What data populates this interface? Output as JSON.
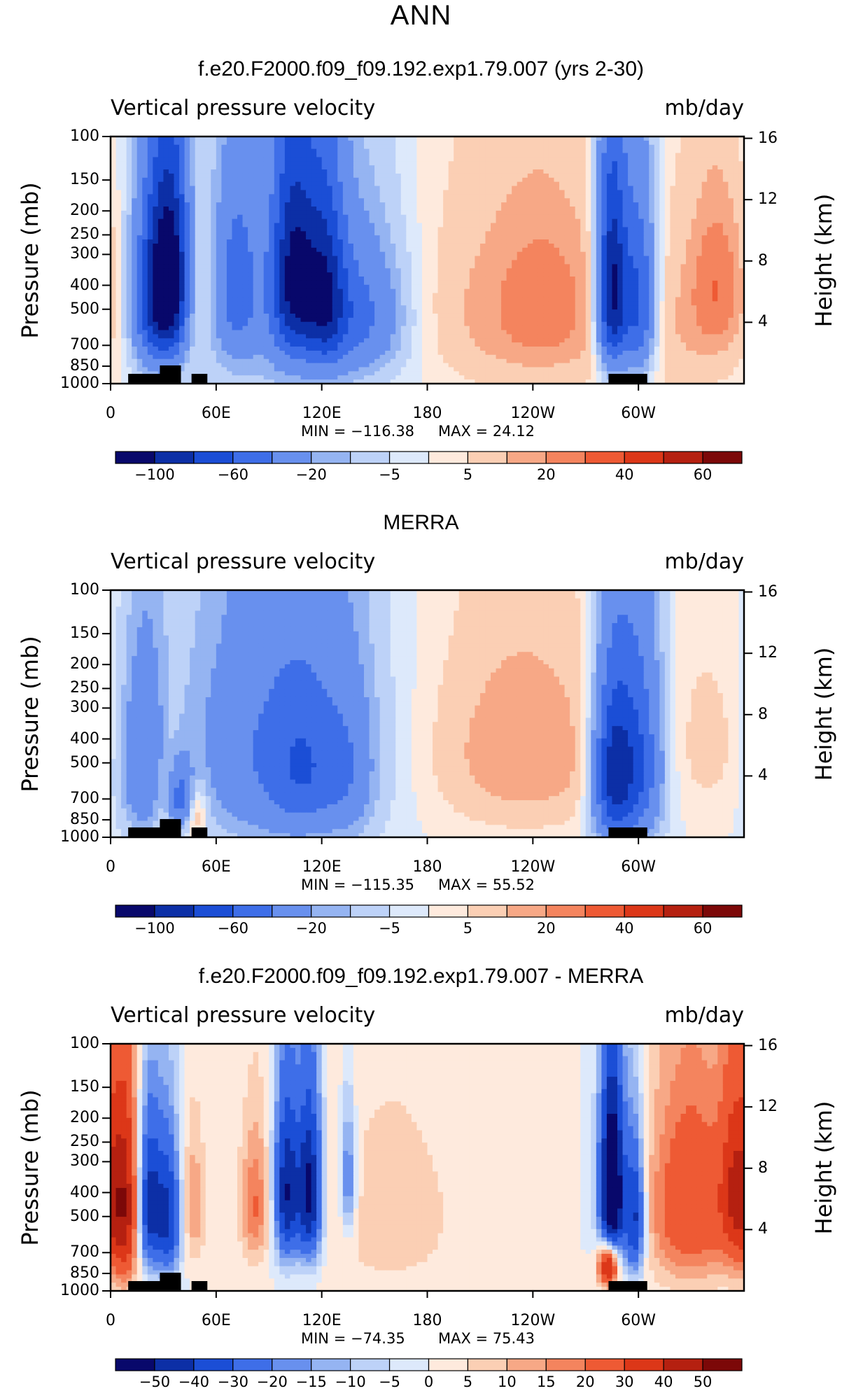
{
  "main_title": "ANN",
  "chart_data": [
    {
      "type": "heatmap",
      "title": "f.e20.F2000.f09_f09.192.exp1.79.007 (yrs 2-30)",
      "subtitle_left": "Vertical pressure velocity",
      "subtitle_right": "mb/day",
      "ylabel": "Pressure (mb)",
      "ylabel_right": "Height (km)",
      "x_ticks": [
        "0",
        "60E",
        "120E",
        "180",
        "120W",
        "60W"
      ],
      "y_ticks": [
        "100",
        "150",
        "200",
        "250",
        "300",
        "400",
        "500",
        "700",
        "850",
        "1000"
      ],
      "y2_ticks": [
        "16",
        "12",
        "8",
        "4"
      ],
      "min_label": "MIN = −116.38",
      "max_label": "MAX =   24.12",
      "colorbar_labels": [
        "−100",
        "−60",
        "−20",
        "−5",
        "5",
        "20",
        "40",
        "60"
      ],
      "colorbar_colors": [
        "#08086b",
        "#0c2fa6",
        "#1b4ed6",
        "#3e6ee8",
        "#6890ee",
        "#95b4f2",
        "#bdd2f8",
        "#dde9fb",
        "#feeadd",
        "#fbcfb4",
        "#f7a886",
        "#f4845e",
        "#ee5a34",
        "#dc3718",
        "#b52010",
        "#7c0808"
      ],
      "fields": [
        {
          "lon": 35,
          "p": 370,
          "sx": 8,
          "sp": 230,
          "amp": -95
        },
        {
          "lon": 25,
          "p": 450,
          "sx": 9,
          "sp": 260,
          "amp": -70
        },
        {
          "lon": 47,
          "p": 420,
          "sx": 6,
          "sp": 220,
          "amp": 22
        },
        {
          "lon": 72,
          "p": 400,
          "sx": 8,
          "sp": 220,
          "amp": -40
        },
        {
          "lon": 104,
          "p": 370,
          "sx": 9,
          "sp": 250,
          "amp": -90
        },
        {
          "lon": 122,
          "p": 420,
          "sx": 8,
          "sp": 260,
          "amp": -65
        },
        {
          "lon": 140,
          "p": 530,
          "sx": 18,
          "sp": 230,
          "amp": -40
        },
        {
          "lon": 95,
          "p": 500,
          "sx": 40,
          "sp": 450,
          "amp": -18
        },
        {
          "lon": 240,
          "p": 500,
          "sx": 42,
          "sp": 330,
          "amp": 20
        },
        {
          "lon": 245,
          "p": 480,
          "sx": 14,
          "sp": 180,
          "amp": 10
        },
        {
          "lon": 285,
          "p": 420,
          "sx": 6,
          "sp": 280,
          "amp": -110
        },
        {
          "lon": 300,
          "p": 470,
          "sx": 7,
          "sp": 280,
          "amp": -70
        },
        {
          "lon": 345,
          "p": 400,
          "sx": 11,
          "sp": 200,
          "amp": 24
        },
        {
          "lon": 330,
          "p": 650,
          "sx": 25,
          "sp": 350,
          "amp": 9
        }
      ]
    },
    {
      "type": "heatmap",
      "title": "MERRA",
      "subtitle_left": "Vertical pressure velocity",
      "subtitle_right": "mb/day",
      "ylabel": "Pressure (mb)",
      "ylabel_right": "Height (km)",
      "x_ticks": [
        "0",
        "60E",
        "120E",
        "180",
        "120W",
        "60W"
      ],
      "y_ticks": [
        "100",
        "150",
        "200",
        "250",
        "300",
        "400",
        "500",
        "700",
        "850",
        "1000"
      ],
      "y2_ticks": [
        "16",
        "12",
        "8",
        "4"
      ],
      "min_label": "MIN = −115.35",
      "max_label": "MAX =   55.52",
      "colorbar_labels": [
        "−100",
        "−60",
        "−20",
        "−5",
        "5",
        "20",
        "40",
        "60"
      ],
      "colorbar_colors": [
        "#08086b",
        "#0c2fa6",
        "#1b4ed6",
        "#3e6ee8",
        "#6890ee",
        "#95b4f2",
        "#bdd2f8",
        "#dde9fb",
        "#feeadd",
        "#fbcfb4",
        "#f7a886",
        "#f4845e",
        "#ee5a34",
        "#dc3718",
        "#b52010",
        "#7c0808"
      ],
      "fields": [
        {
          "lon": 20,
          "p": 500,
          "sx": 10,
          "sp": 300,
          "amp": -40
        },
        {
          "lon": 32,
          "p": 600,
          "sx": 7,
          "sp": 250,
          "amp": 20
        },
        {
          "lon": 40,
          "p": 700,
          "sx": 5,
          "sp": 150,
          "amp": -50
        },
        {
          "lon": 48,
          "p": 780,
          "sx": 5,
          "sp": 150,
          "amp": 25
        },
        {
          "lon": 95,
          "p": 450,
          "sx": 35,
          "sp": 380,
          "amp": -42
        },
        {
          "lon": 110,
          "p": 550,
          "sx": 12,
          "sp": 250,
          "amp": -25
        },
        {
          "lon": 135,
          "p": 550,
          "sx": 10,
          "sp": 280,
          "amp": -20
        },
        {
          "lon": 235,
          "p": 450,
          "sx": 35,
          "sp": 280,
          "amp": 20
        },
        {
          "lon": 285,
          "p": 550,
          "sx": 8,
          "sp": 300,
          "amp": -80
        },
        {
          "lon": 300,
          "p": 500,
          "sx": 10,
          "sp": 330,
          "amp": -60
        },
        {
          "lon": 340,
          "p": 420,
          "sx": 18,
          "sp": 250,
          "amp": 7
        }
      ]
    },
    {
      "type": "heatmap",
      "title": "f.e20.F2000.f09_f09.192.exp1.79.007 - MERRA",
      "subtitle_left": "Vertical pressure velocity",
      "subtitle_right": "mb/day",
      "ylabel": "Pressure (mb)",
      "ylabel_right": "Height (km)",
      "x_ticks": [
        "0",
        "60E",
        "120E",
        "180",
        "120W",
        "60W"
      ],
      "y_ticks": [
        "100",
        "150",
        "200",
        "250",
        "300",
        "400",
        "500",
        "700",
        "850",
        "1000"
      ],
      "y2_ticks": [
        "16",
        "12",
        "8",
        "4"
      ],
      "min_label": "MIN = −74.35",
      "max_label": "MAX =   75.43",
      "colorbar_labels": [
        "−50",
        "−40",
        "−30",
        "−20",
        "−15",
        "−10",
        "−5",
        "0",
        "5",
        "10",
        "15",
        "20",
        "30",
        "40",
        "50"
      ],
      "colorbar_colors": [
        "#08086b",
        "#0c2fa6",
        "#1b4ed6",
        "#3e6ee8",
        "#6890ee",
        "#95b4f2",
        "#bdd2f8",
        "#dde9fb",
        "#feeadd",
        "#fbcfb4",
        "#f7a886",
        "#f4845e",
        "#ee5a34",
        "#dc3718",
        "#b52010",
        "#7c0808"
      ],
      "fields": [
        {
          "lon": 8,
          "p": 450,
          "sx": 6,
          "sp": 300,
          "amp": 45
        },
        {
          "lon": 22,
          "p": 450,
          "sx": 5,
          "sp": 230,
          "amp": -45
        },
        {
          "lon": 33,
          "p": 500,
          "sx": 5,
          "sp": 230,
          "amp": -40
        },
        {
          "lon": 47,
          "p": 450,
          "sx": 5,
          "sp": 200,
          "amp": 15
        },
        {
          "lon": 82,
          "p": 450,
          "sx": 6,
          "sp": 200,
          "amp": 20
        },
        {
          "lon": 100,
          "p": 400,
          "sx": 5,
          "sp": 230,
          "amp": -50
        },
        {
          "lon": 113,
          "p": 400,
          "sx": 5,
          "sp": 230,
          "amp": -55
        },
        {
          "lon": 135,
          "p": 350,
          "sx": 3,
          "sp": 150,
          "amp": -25
        },
        {
          "lon": 160,
          "p": 500,
          "sx": 35,
          "sp": 400,
          "amp": 7
        },
        {
          "lon": 285,
          "p": 400,
          "sx": 5,
          "sp": 250,
          "amp": -75
        },
        {
          "lon": 283,
          "p": 780,
          "sx": 4,
          "sp": 120,
          "amp": 60
        },
        {
          "lon": 298,
          "p": 500,
          "sx": 4,
          "sp": 230,
          "amp": -45
        },
        {
          "lon": 330,
          "p": 450,
          "sx": 18,
          "sp": 300,
          "amp": 30
        },
        {
          "lon": 355,
          "p": 400,
          "sx": 6,
          "sp": 250,
          "amp": 30
        }
      ]
    }
  ]
}
